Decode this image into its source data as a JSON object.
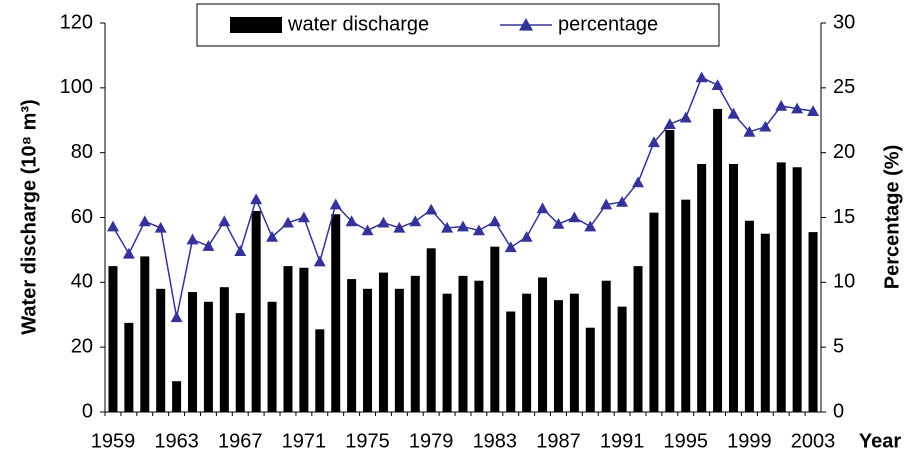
{
  "chart_data": {
    "type": "bar_line",
    "y_label": "Water discharge (10⁸ m³)",
    "y2_label": "Percentage (%)",
    "x_label": "Year",
    "categories": [
      "1959",
      null,
      null,
      null,
      "1963",
      null,
      null,
      null,
      "1967",
      null,
      null,
      null,
      "1971",
      null,
      null,
      null,
      "1975",
      null,
      null,
      null,
      "1979",
      null,
      null,
      null,
      "1983",
      null,
      null,
      null,
      "1987",
      null,
      null,
      null,
      "1991",
      null,
      null,
      null,
      "1995",
      null,
      null,
      null,
      "1999",
      null,
      null,
      null,
      "2003"
    ],
    "series": [
      {
        "name": "water discharge",
        "type": "bar",
        "color": "#000000",
        "values": [
          45,
          27.5,
          48,
          38,
          9.5,
          37,
          34,
          38.5,
          30.5,
          62,
          34,
          45,
          44.5,
          25.5,
          61,
          41,
          38,
          43,
          38,
          42,
          50.5,
          36.5,
          42,
          40.5,
          51,
          31,
          36.5,
          41.5,
          34.5,
          36.5,
          26,
          40.5,
          32.5,
          45,
          61.5,
          87,
          65.5,
          76.5,
          93.5,
          76.5,
          59,
          55,
          77,
          75.5,
          55.5
        ]
      },
      {
        "name": "percentage",
        "type": "line",
        "axis": "y2",
        "color": "#333399",
        "marker": "triangle",
        "values": [
          14.3,
          12.2,
          14.7,
          14.2,
          7.3,
          13.3,
          12.8,
          14.7,
          12.4,
          16.4,
          13.5,
          14.6,
          15.0,
          11.6,
          16.0,
          14.7,
          14.0,
          14.6,
          14.2,
          14.7,
          15.6,
          14.2,
          14.3,
          14.0,
          14.7,
          12.7,
          13.5,
          15.7,
          14.5,
          15.0,
          14.3,
          16.0,
          16.2,
          17.7,
          20.8,
          22.2,
          22.7,
          25.8,
          25.2,
          23.0,
          21.6,
          22.0,
          23.6,
          23.4,
          23.2
        ]
      }
    ],
    "ylim": [
      0,
      120
    ],
    "yticks": [
      0,
      20,
      40,
      60,
      80,
      100,
      120
    ],
    "y2lim": [
      0,
      30
    ],
    "y2ticks": [
      0,
      5,
      10,
      15,
      20,
      25,
      30
    ],
    "legend": "top-center",
    "grid": false
  }
}
